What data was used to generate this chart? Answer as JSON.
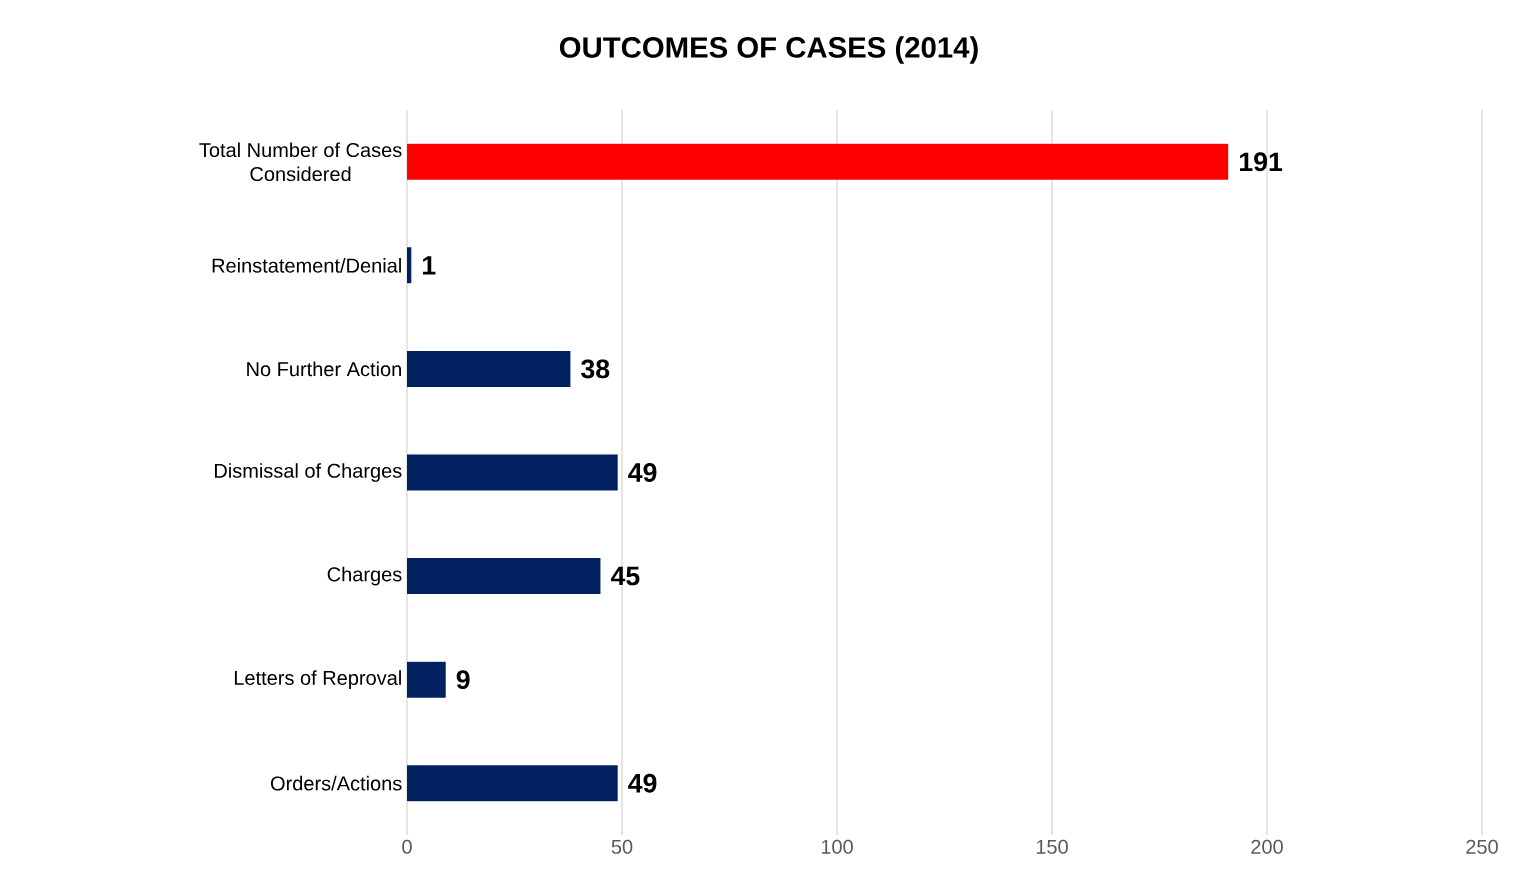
{
  "chart_data": {
    "type": "bar",
    "orientation": "horizontal",
    "title": "OUTCOMES OF CASES (2014)",
    "categories": [
      "Total Number of Cases Considered",
      "Reinstatement/Denial",
      "No Further Action",
      "Dismissal of Charges",
      "Charges",
      "Letters of Reproval",
      "Orders/Actions"
    ],
    "values": [
      191,
      1,
      38,
      49,
      45,
      9,
      49
    ],
    "colors": [
      "#ff0000",
      "#002060",
      "#002060",
      "#002060",
      "#002060",
      "#002060",
      "#002060"
    ],
    "xlim": [
      0,
      250
    ],
    "xticks": [
      0,
      50,
      100,
      150,
      200,
      250
    ],
    "grid": "x",
    "data_labels": true
  }
}
